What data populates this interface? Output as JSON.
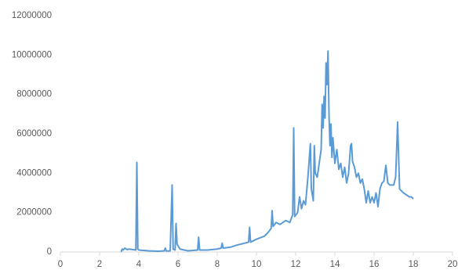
{
  "chart_data": {
    "type": "line",
    "x": [
      3.1,
      3.15,
      3.2,
      3.3,
      3.4,
      3.5,
      3.7,
      3.85,
      3.9,
      3.95,
      4.0,
      4.5,
      5.0,
      5.3,
      5.35,
      5.4,
      5.6,
      5.7,
      5.75,
      5.85,
      5.9,
      5.95,
      6.1,
      6.5,
      7.0,
      7.05,
      7.1,
      7.5,
      8.0,
      8.2,
      8.25,
      8.3,
      8.7,
      9.0,
      9.4,
      9.6,
      9.65,
      9.7,
      10.0,
      10.4,
      10.6,
      10.75,
      10.8,
      10.85,
      11.0,
      11.2,
      11.5,
      11.7,
      11.85,
      11.9,
      11.95,
      12.1,
      12.2,
      12.3,
      12.4,
      12.5,
      12.6,
      12.7,
      12.75,
      12.8,
      12.9,
      12.95,
      13.0,
      13.1,
      13.2,
      13.3,
      13.35,
      13.4,
      13.45,
      13.5,
      13.55,
      13.6,
      13.65,
      13.7,
      13.75,
      13.8,
      13.85,
      13.9,
      14.0,
      14.1,
      14.2,
      14.3,
      14.4,
      14.5,
      14.6,
      14.7,
      14.8,
      14.85,
      14.9,
      15.0,
      15.1,
      15.2,
      15.3,
      15.4,
      15.5,
      15.6,
      15.7,
      15.8,
      15.9,
      16.0,
      16.1,
      16.2,
      16.3,
      16.4,
      16.5,
      16.6,
      16.7,
      16.8,
      17.0,
      17.1,
      17.2,
      17.3,
      17.5,
      17.8,
      17.9,
      18.0
    ],
    "series": [
      {
        "color": "#5b9bd5",
        "values": [
          0,
          150000,
          100000,
          200000,
          120000,
          150000,
          120000,
          100000,
          4550000,
          150000,
          100000,
          60000,
          40000,
          60000,
          200000,
          50000,
          60000,
          3400000,
          150000,
          100000,
          1450000,
          400000,
          150000,
          60000,
          100000,
          750000,
          100000,
          100000,
          150000,
          200000,
          450000,
          200000,
          250000,
          350000,
          450000,
          500000,
          1250000,
          500000,
          650000,
          800000,
          1000000,
          1200000,
          2100000,
          1300000,
          1500000,
          1400000,
          1600000,
          1500000,
          1900000,
          6300000,
          1800000,
          2000000,
          2800000,
          2200000,
          2600000,
          2400000,
          3500000,
          4800000,
          5500000,
          3200000,
          2600000,
          5400000,
          4000000,
          3800000,
          4500000,
          5200000,
          7500000,
          6300000,
          7900000,
          6800000,
          9600000,
          8500000,
          10200000,
          7000000,
          5400000,
          6500000,
          4800000,
          5800000,
          4500000,
          5200000,
          4200000,
          4500000,
          3800000,
          4300000,
          3500000,
          4000000,
          5400000,
          5500000,
          4600000,
          4300000,
          3800000,
          4000000,
          3500000,
          3700000,
          3200000,
          2500000,
          3100000,
          2500000,
          2800000,
          2500000,
          3000000,
          2300000,
          3200000,
          3500000,
          3600000,
          4400000,
          3500000,
          3400000,
          3400000,
          3800000,
          6600000,
          3200000,
          3000000,
          2800000,
          2800000,
          2700000
        ]
      }
    ],
    "xlim": [
      0,
      20
    ],
    "xticks": [
      0,
      2,
      4,
      6,
      8,
      10,
      12,
      14,
      16,
      18,
      20
    ],
    "ylim": [
      0,
      12000000
    ],
    "yticks": [
      0,
      2000000,
      4000000,
      6000000,
      8000000,
      10000000,
      12000000
    ]
  }
}
